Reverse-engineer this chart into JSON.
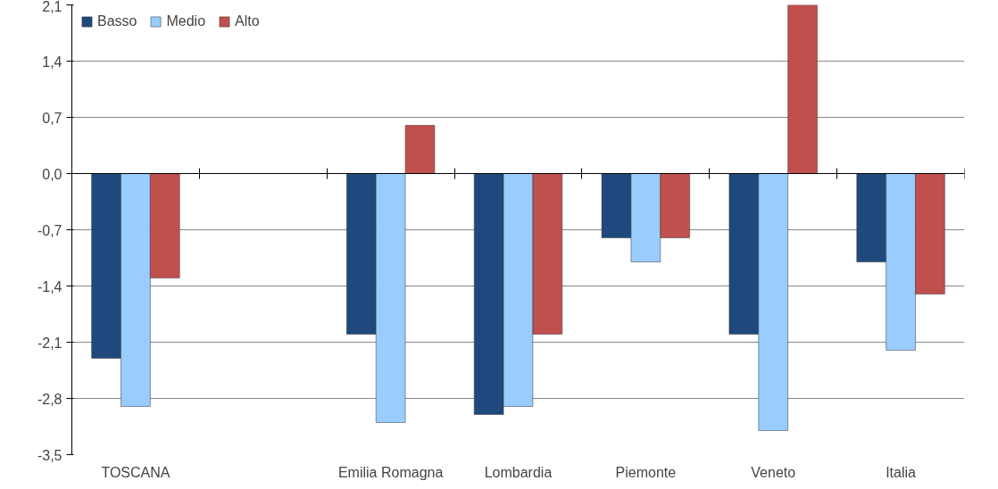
{
  "chart_data": {
    "type": "bar",
    "categories": [
      "TOSCANA",
      null,
      "Emilia Romagna",
      "Lombardia",
      "Piemonte",
      "Veneto",
      "Italia"
    ],
    "series": [
      {
        "name": "Basso",
        "color": "#1f497d",
        "values": [
          -2.3,
          null,
          -2.0,
          -3.0,
          -0.8,
          -2.0,
          -1.1
        ]
      },
      {
        "name": "Medio",
        "color": "#99ccff",
        "values": [
          -2.9,
          null,
          -3.1,
          -2.9,
          -1.1,
          -3.2,
          -2.2
        ]
      },
      {
        "name": "Alto",
        "color": "#c0504d",
        "values": [
          -1.3,
          null,
          0.6,
          -2.0,
          -0.8,
          2.1,
          -1.5
        ]
      }
    ],
    "ylim": [
      -3.5,
      2.1
    ],
    "yticks": [
      {
        "value": -3.5,
        "label": "-3,5"
      },
      {
        "value": -2.8,
        "label": "-2,8"
      },
      {
        "value": -2.1,
        "label": "-2,1"
      },
      {
        "value": -1.4,
        "label": "-1,4"
      },
      {
        "value": -0.7,
        "label": "-0,7"
      },
      {
        "value": 0,
        "label": "0,0"
      },
      {
        "value": 0.7,
        "label": "0,7"
      },
      {
        "value": 1.4,
        "label": "1,4"
      },
      {
        "value": 2.1,
        "label": "2,1"
      }
    ],
    "grid": "y",
    "legend": "top left"
  }
}
